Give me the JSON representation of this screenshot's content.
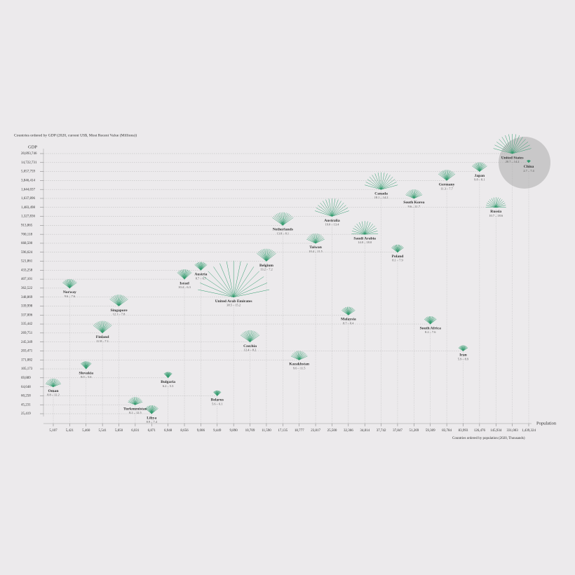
{
  "chart_data": {
    "type": "fan-scatter",
    "title": "Countries ordered by GDP (2020, current US$, Most Recent Value (Millions))",
    "y_label": "GDP",
    "x_label": "Population",
    "x_title": "Countries ordered by population (2020, Thousands)",
    "color": "#2f9a6c",
    "yticks": [
      {
        "value": 25419,
        "label": "25,419"
      },
      {
        "value": 45231,
        "label": "45,231"
      },
      {
        "value": 60258,
        "label": "60,258"
      },
      {
        "value": 64648,
        "label": "64,648"
      },
      {
        "value": 69889,
        "label": "69,889"
      },
      {
        "value": 105173,
        "label": "105,173"
      },
      {
        "value": 171082,
        "label": "171,082"
      },
      {
        "value": 203471,
        "label": "203,471"
      },
      {
        "value": 245349,
        "label": "245,349"
      },
      {
        "value": 269751,
        "label": "269,751"
      },
      {
        "value": 335442,
        "label": "335,442"
      },
      {
        "value": 337006,
        "label": "337,006"
      },
      {
        "value": 339998,
        "label": "339,998"
      },
      {
        "value": 348869,
        "label": "348,869"
      },
      {
        "value": 362522,
        "label": "362,522"
      },
      {
        "value": 407101,
        "label": "407,101"
      },
      {
        "value": 433258,
        "label": "433,258"
      },
      {
        "value": 521861,
        "label": "521,861"
      },
      {
        "value": 596624,
        "label": "596,624"
      },
      {
        "value": 668500,
        "label": "668,500"
      },
      {
        "value": 700118,
        "label": "700,118"
      },
      {
        "value": 913865,
        "label": "913,865"
      },
      {
        "value": 1327836,
        "label": "1,327,836"
      },
      {
        "value": 1483498,
        "label": "1,483,498"
      },
      {
        "value": 1637896,
        "label": "1,637,896"
      },
      {
        "value": 1644037,
        "label": "1,644,037"
      },
      {
        "value": 3846414,
        "label": "3,846,414"
      },
      {
        "value": 5057759,
        "label": "5,057,759"
      },
      {
        "value": 14722731,
        "label": "14,722,731"
      },
      {
        "value": 20893746,
        "label": "20,893,746"
      }
    ],
    "xticks": [
      {
        "value": 5107,
        "label": "5,107"
      },
      {
        "value": 5421,
        "label": "5,421"
      },
      {
        "value": 5460,
        "label": "5,460"
      },
      {
        "value": 5541,
        "label": "5,541"
      },
      {
        "value": 5850,
        "label": "5,850"
      },
      {
        "value": 6031,
        "label": "6,031"
      },
      {
        "value": 6871,
        "label": "6,871"
      },
      {
        "value": 6948,
        "label": "6,948"
      },
      {
        "value": 8656,
        "label": "8,656"
      },
      {
        "value": 9006,
        "label": "9,006"
      },
      {
        "value": 9449,
        "label": "9,449"
      },
      {
        "value": 9890,
        "label": "9,890"
      },
      {
        "value": 10709,
        "label": "10,709"
      },
      {
        "value": 11590,
        "label": "11,590"
      },
      {
        "value": 17135,
        "label": "17,135"
      },
      {
        "value": 18777,
        "label": "18,777"
      },
      {
        "value": 23817,
        "label": "23,817"
      },
      {
        "value": 25500,
        "label": "25,500"
      },
      {
        "value": 32366,
        "label": "32,366"
      },
      {
        "value": 34814,
        "label": "34,814"
      },
      {
        "value": 37742,
        "label": "37,742"
      },
      {
        "value": 37847,
        "label": "37,847"
      },
      {
        "value": 51269,
        "label": "51,269"
      },
      {
        "value": 59309,
        "label": "59,309"
      },
      {
        "value": 83784,
        "label": "83,784"
      },
      {
        "value": 83993,
        "label": "83,993"
      },
      {
        "value": 126476,
        "label": "126,476"
      },
      {
        "value": 145934,
        "label": "145,934"
      },
      {
        "value": 331003,
        "label": "331,003"
      },
      {
        "value": 1439324,
        "label": "1,439,324"
      }
    ],
    "countries": [
      {
        "name": "Oman",
        "population": 5107,
        "gdp": 64648,
        "values": [
          8.8,
          12.2
        ],
        "label": "8.8 – 12.2"
      },
      {
        "name": "Norway",
        "population": 5421,
        "gdp": 362522,
        "values": [
          9.6,
          7.6
        ],
        "label": "9.6 – 7.6"
      },
      {
        "name": "Slovakia",
        "population": 5460,
        "gdp": 105173,
        "values": [
          8.0,
          5.6
        ],
        "label": "8.0 – 5.6"
      },
      {
        "name": "Finland",
        "population": 5541,
        "gdp": 269751,
        "values": [
          12.8,
          7.1
        ],
        "label": "12.8 – 7.1"
      },
      {
        "name": "Singapore",
        "population": 5850,
        "gdp": 339998,
        "values": [
          12.1,
          7.8
        ],
        "label": "12.1 – 7.8"
      },
      {
        "name": "Turkmenistan",
        "population": 6031,
        "gdp": 45231,
        "values": [
          8.2,
          12.5
        ],
        "label": "8.2 – 12.5"
      },
      {
        "name": "Libya",
        "population": 6871,
        "gdp": 25419,
        "values": [
          8.9,
          7.4
        ],
        "label": "8.9 – 7.4"
      },
      {
        "name": "Bulgaria",
        "population": 6948,
        "gdp": 69889,
        "values": [
          6.2,
          5.3
        ],
        "label": "6.2 – 5.3"
      },
      {
        "name": "Israel",
        "population": 8656,
        "gdp": 407101,
        "values": [
          10.4,
          6.3
        ],
        "label": "10.4 – 6.3"
      },
      {
        "name": "Austria",
        "population": 9006,
        "gdp": 433258,
        "values": [
          8.7,
          6.7
        ],
        "label": "8.7 – 6.7"
      },
      {
        "name": "Belarus",
        "population": 9449,
        "gdp": 60258,
        "values": [
          5.6,
          6.1
        ],
        "label": "5.6 – 6.1"
      },
      {
        "name": "United Arab Emirates",
        "population": 9890,
        "gdp": 348869,
        "values": [
          38.5,
          15.2
        ],
        "label": "38.5 – 15.2"
      },
      {
        "name": "Czechia",
        "population": 10709,
        "gdp": 245349,
        "values": [
          12.4,
          8.2
        ],
        "label": "12.4 – 8.2"
      },
      {
        "name": "Belgium",
        "population": 11590,
        "gdp": 521861,
        "values": [
          13.2,
          7.2
        ],
        "label": "13.2 – 7.2"
      },
      {
        "name": "Netherlands",
        "population": 17135,
        "gdp": 913865,
        "values": [
          13.8,
          8.1
        ],
        "label": "13.8 – 8.1"
      },
      {
        "name": "Kazakhstan",
        "population": 18777,
        "gdp": 171082,
        "values": [
          9.6,
          11.5
        ],
        "label": "9.6 – 11.5"
      },
      {
        "name": "Taiwan",
        "population": 23817,
        "gdp": 668500,
        "values": [
          10.4,
          11.5
        ],
        "label": "10.4 – 11.5"
      },
      {
        "name": "Australia",
        "population": 25500,
        "gdp": 1327836,
        "values": [
          19.0,
          13.4
        ],
        "label": "19.0 – 13.4"
      },
      {
        "name": "Malaysia",
        "population": 32366,
        "gdp": 337006,
        "values": [
          8.7,
          8.4
        ],
        "label": "8.7 – 8.4"
      },
      {
        "name": "Saudi Arabia",
        "population": 34814,
        "gdp": 700118,
        "values": [
          14.0,
          18.0
        ],
        "label": "14.0 – 18.0"
      },
      {
        "name": "Canada",
        "population": 37742,
        "gdp": 1644037,
        "values": [
          18.1,
          14.2
        ],
        "label": "18.1 – 14.2"
      },
      {
        "name": "Poland",
        "population": 37847,
        "gdp": 596624,
        "values": [
          8.1,
          7.9
        ],
        "label": "8.1 – 7.9"
      },
      {
        "name": "South Korea",
        "population": 51269,
        "gdp": 1637896,
        "values": [
          9.6,
          11.7
        ],
        "label": "9.6 – 11.7"
      },
      {
        "name": "South Africa",
        "population": 59309,
        "gdp": 335442,
        "values": [
          8.2,
          7.6
        ],
        "label": "8.2 – 7.6"
      },
      {
        "name": "Germany",
        "population": 83784,
        "gdp": 3846414,
        "values": [
          11.3,
          7.7
        ],
        "label": "11.3 – 7.7"
      },
      {
        "name": "Iran",
        "population": 83993,
        "gdp": 203471,
        "values": [
          5.9,
          8.9
        ],
        "label": "5.9 – 8.9"
      },
      {
        "name": "Japan",
        "population": 126476,
        "gdp": 5057759,
        "values": [
          9.8,
          8.1
        ],
        "label": "9.8 – 8.1"
      },
      {
        "name": "Russia",
        "population": 145934,
        "gdp": 1483498,
        "values": [
          10.7,
          18.6
        ],
        "label": "10.7 – 18.6"
      },
      {
        "name": "United States",
        "population": 331003,
        "gdp": 20893746,
        "values": [
          20.7,
          14.2
        ],
        "label": "20.7 – 14.2"
      },
      {
        "name": "China",
        "population": 1439324,
        "gdp": 14722731,
        "values": [
          2.7,
          7.4
        ],
        "label": "2.7 – 7.4"
      }
    ]
  }
}
